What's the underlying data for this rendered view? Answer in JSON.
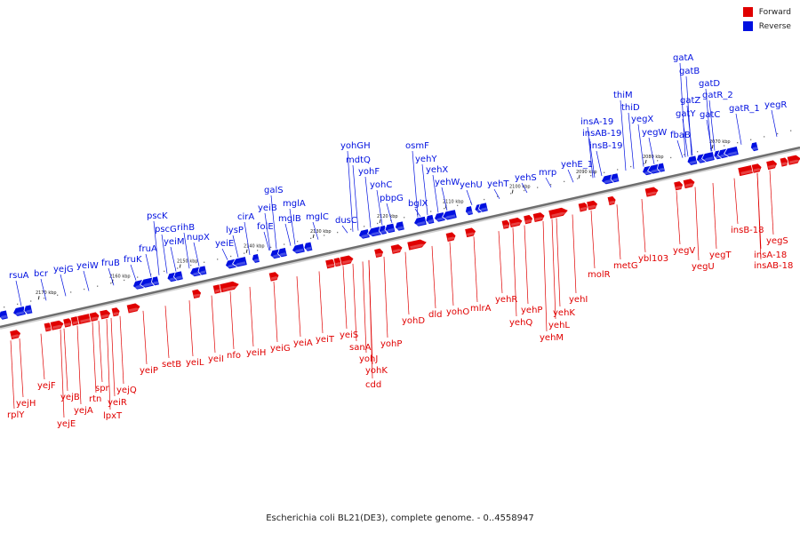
{
  "legend": {
    "forward_label": "Forward",
    "reverse_label": "Reverse",
    "forward_color": "#e00000",
    "reverse_color": "#0010e0"
  },
  "caption": "Escherichia coli BL21(DE3), complete genome. - 0..4558947",
  "ticks": [
    {
      "kbp": 2070,
      "label": "2070 kbp"
    },
    {
      "kbp": 2080,
      "label": "2080 kbp"
    },
    {
      "kbp": 2090,
      "label": "2090 kbp"
    },
    {
      "kbp": 2100,
      "label": "2100 kbp"
    },
    {
      "kbp": 2110,
      "label": "2110 kbp"
    },
    {
      "kbp": 2120,
      "label": "2120 kbp"
    },
    {
      "kbp": 2130,
      "label": "2130 kbp"
    },
    {
      "kbp": 2140,
      "label": "2140 kbp"
    },
    {
      "kbp": 2150,
      "label": "2150 kbp"
    },
    {
      "kbp": 2160,
      "label": "2160 kbp"
    },
    {
      "kbp": 2170,
      "label": "2170 kbp"
    }
  ],
  "reverse_genes": [
    "rsuA",
    "bcr",
    "yejG",
    "yeiW",
    "fruB",
    "fruK",
    "fruA",
    "pscK",
    "pscG",
    "yeiM",
    "rihB",
    "nupX",
    "yeiE",
    "lysP",
    "cirA",
    "yeiB",
    "folE",
    "galS",
    "mglB",
    "mglA",
    "mglC",
    "dusC",
    "yohGH",
    "mdtQ",
    "yohF",
    "yohC",
    "pbpG",
    "bglX",
    "osmF",
    "yehY",
    "yehX",
    "yehW",
    "yehU",
    "yehT",
    "yehS",
    "mrp",
    "yehE_1",
    "insA-19",
    "insAB-19",
    "insB-19",
    "thiM",
    "thiD",
    "yegX",
    "yegW",
    "fbaB",
    "gatA",
    "gatB",
    "gatD",
    "gatZ",
    "gatY",
    "gatR_2",
    "gatC",
    "gatR_1",
    "yegR"
  ],
  "forward_genes": [
    "rplY",
    "yejH",
    "yejF",
    "yejE",
    "yejB",
    "yejA",
    "rtn",
    "spr",
    "lpxT",
    "yeiR",
    "yejQ",
    "yeiP",
    "setB",
    "yeiL",
    "yeiI",
    "nfo",
    "yeiH",
    "yeiG",
    "yeiA",
    "yeiT",
    "yeiS",
    "sanA",
    "yohJ",
    "yohK",
    "cdd",
    "yohP",
    "yohD",
    "dld",
    "yohO",
    "mlrA",
    "yehR",
    "yehQ",
    "yehP",
    "yehM",
    "yehL",
    "yehK",
    "yehI",
    "molR",
    "metG",
    "ybl103",
    "yegV",
    "yegU",
    "yegT",
    "insB-18",
    "yegS",
    "insA-18",
    "insAB-18"
  ]
}
